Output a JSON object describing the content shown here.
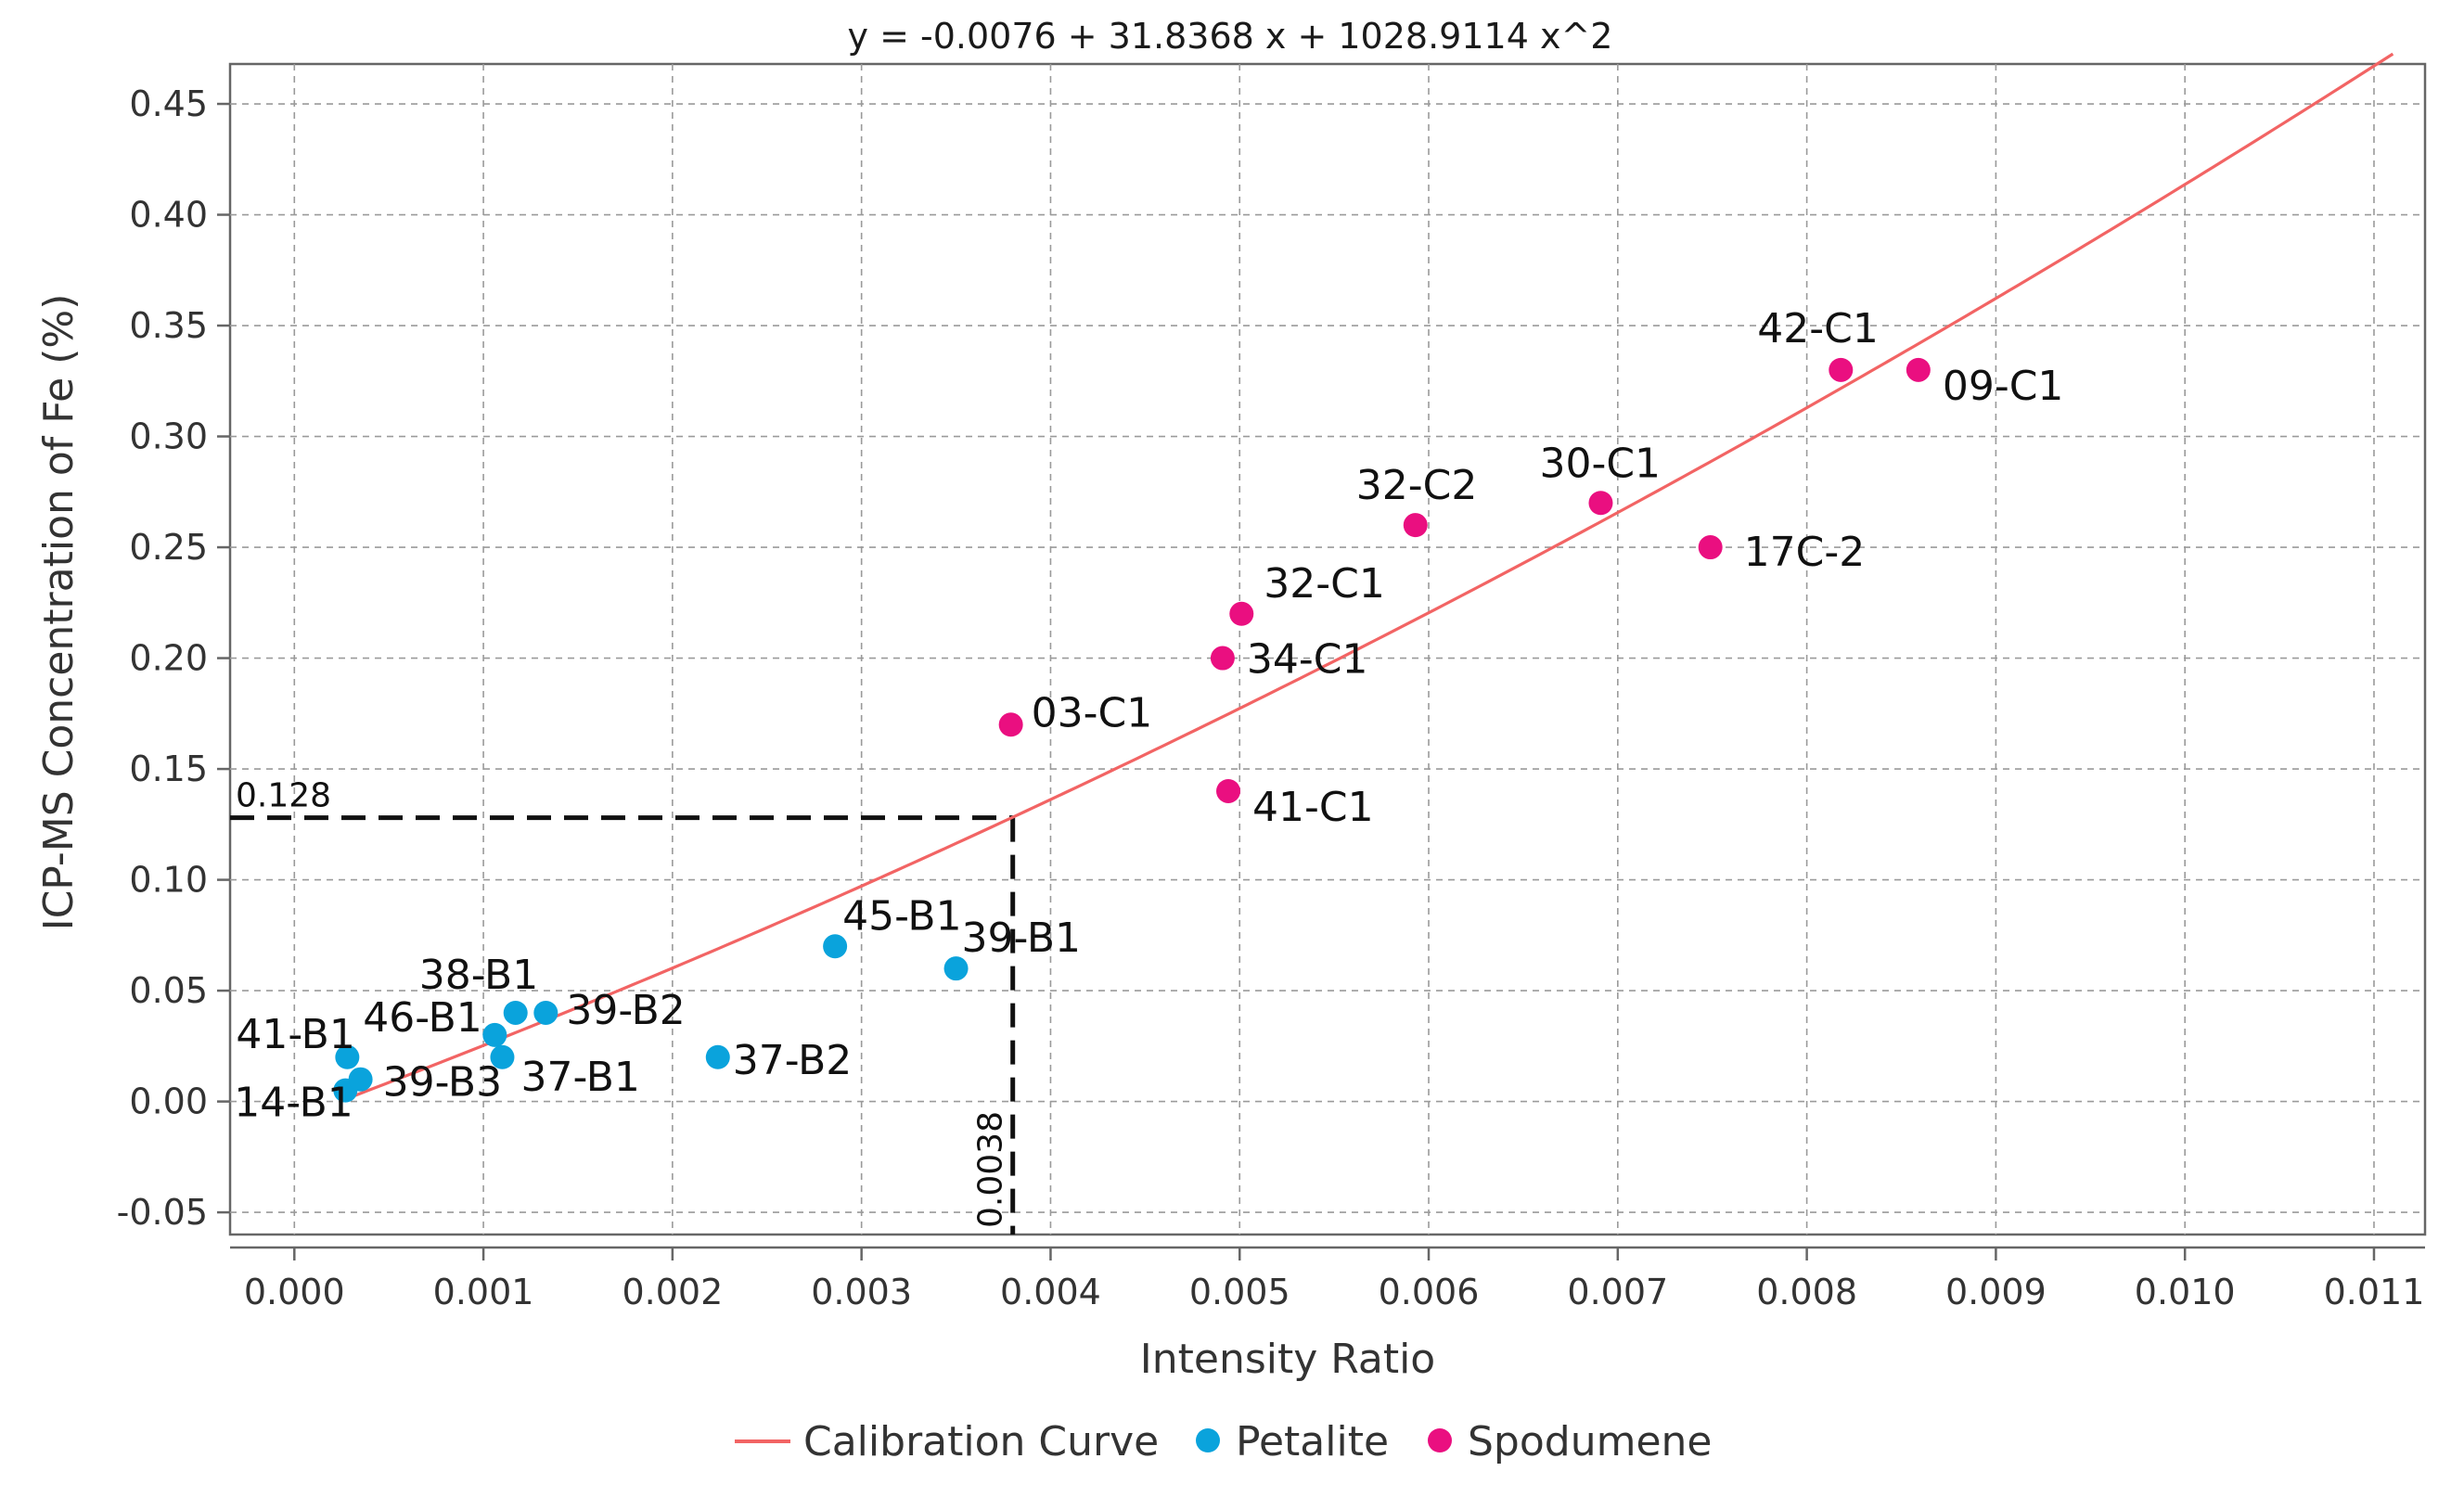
{
  "chart_data": {
    "type": "scatter",
    "title": "y = -0.0076 + 31.8368 x + 1028.9114 x^2",
    "xlabel": "Intensity Ratio",
    "ylabel": "ICP-MS Concentration of Fe (%)",
    "xlim": [
      -0.00034,
      0.01127
    ],
    "ylim": [
      -0.06,
      0.468
    ],
    "x_ticks": [
      0.0,
      0.001,
      0.002,
      0.003,
      0.004,
      0.005,
      0.006,
      0.007,
      0.008,
      0.009,
      0.01,
      0.011
    ],
    "x_tick_labels": [
      "0.000",
      "0.001",
      "0.002",
      "0.003",
      "0.004",
      "0.005",
      "0.006",
      "0.007",
      "0.008",
      "0.009",
      "0.010",
      "0.011"
    ],
    "y_ticks": [
      -0.05,
      0.0,
      0.05,
      0.1,
      0.15,
      0.2,
      0.25,
      0.3,
      0.35,
      0.4,
      0.45
    ],
    "y_tick_labels": [
      "-0.05",
      "0.00",
      "0.05",
      "0.10",
      "0.15",
      "0.20",
      "0.25",
      "0.30",
      "0.35",
      "0.40",
      "0.45"
    ],
    "grid": true,
    "legend_position": "bottom-center",
    "calibration_curve": {
      "name": "Calibration Curve",
      "color": "#f26464",
      "intercept": -0.0076,
      "linear": 31.8368,
      "quadratic": 1028.9114,
      "x_range": [
        0.00025,
        0.0111
      ]
    },
    "series": [
      {
        "name": "Petalite",
        "color": "#0aa3dc",
        "points": [
          {
            "label": "14-B1",
            "x": 0.00027,
            "y": 0.005
          },
          {
            "label": "41-B1",
            "x": 0.00028,
            "y": 0.02
          },
          {
            "label": "39-B3",
            "x": 0.00035,
            "y": 0.01
          },
          {
            "label": "46-B1",
            "x": 0.00106,
            "y": 0.03
          },
          {
            "label": "37-B1",
            "x": 0.0011,
            "y": 0.02
          },
          {
            "label": "38-B1",
            "x": 0.00117,
            "y": 0.04
          },
          {
            "label": "39-B2",
            "x": 0.00133,
            "y": 0.04
          },
          {
            "label": "37-B2",
            "x": 0.00224,
            "y": 0.02
          },
          {
            "label": "45-B1",
            "x": 0.00286,
            "y": 0.07
          },
          {
            "label": "39-B1",
            "x": 0.0035,
            "y": 0.06
          }
        ]
      },
      {
        "name": "Spodumene",
        "color": "#ea0f80",
        "points": [
          {
            "label": "03-C1",
            "x": 0.00379,
            "y": 0.17
          },
          {
            "label": "34-C1",
            "x": 0.00491,
            "y": 0.2
          },
          {
            "label": "41-C1",
            "x": 0.00494,
            "y": 0.14
          },
          {
            "label": "32-C1",
            "x": 0.00501,
            "y": 0.22
          },
          {
            "label": "32-C2",
            "x": 0.00593,
            "y": 0.26
          },
          {
            "label": "30-C1",
            "x": 0.00691,
            "y": 0.27
          },
          {
            "label": "17C-2",
            "x": 0.00749,
            "y": 0.25
          },
          {
            "label": "42-C1",
            "x": 0.00818,
            "y": 0.33
          },
          {
            "label": "09-C1",
            "x": 0.00859,
            "y": 0.33
          }
        ]
      }
    ],
    "reference_lines": {
      "x": 0.0038,
      "y": 0.128,
      "x_label": "0.0038",
      "y_label": "0.128"
    },
    "legend": [
      "Calibration Curve",
      "Petalite",
      "Spodumene"
    ]
  }
}
